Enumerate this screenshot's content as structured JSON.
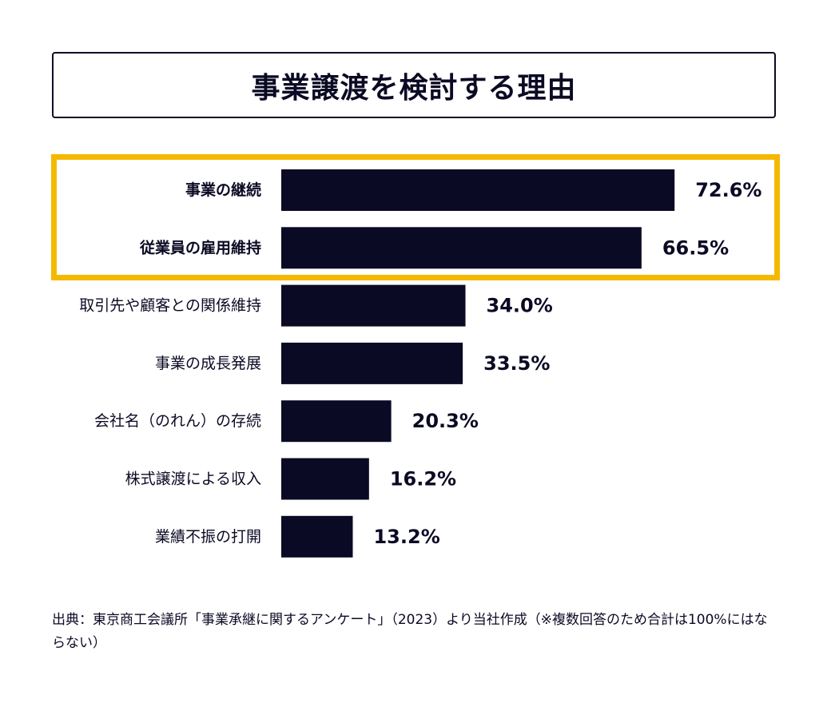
{
  "colors": {
    "bar": "#0b0a24",
    "highlight": "#f5b800",
    "text": "#0b0a24"
  },
  "chart_data": {
    "type": "bar",
    "orientation": "horizontal",
    "title": "事業譲渡を検討する理由",
    "categories": [
      "事業の継続",
      "従業員の雇用維持",
      "取引先や顧客との関係維持",
      "事業の成長発展",
      "会社名（のれん）の存続",
      "株式譲渡による収入",
      "業績不振の打開"
    ],
    "values": [
      72.6,
      66.5,
      34.0,
      33.5,
      20.3,
      16.2,
      13.2
    ],
    "value_labels": [
      "72.6%",
      "66.5%",
      "34.0%",
      "33.5%",
      "20.3%",
      "16.2%",
      "13.2%"
    ],
    "highlighted_categories": [
      "事業の継続",
      "従業員の雇用維持"
    ],
    "unit": "%",
    "xlabel": "",
    "ylabel": "",
    "xlim": [
      0,
      100
    ],
    "grid": false
  },
  "source_note": "出典：東京商工会議所「事業承継に関するアンケート」（2023）より当社作成（※複数回答のため合計は100%にはならない）"
}
